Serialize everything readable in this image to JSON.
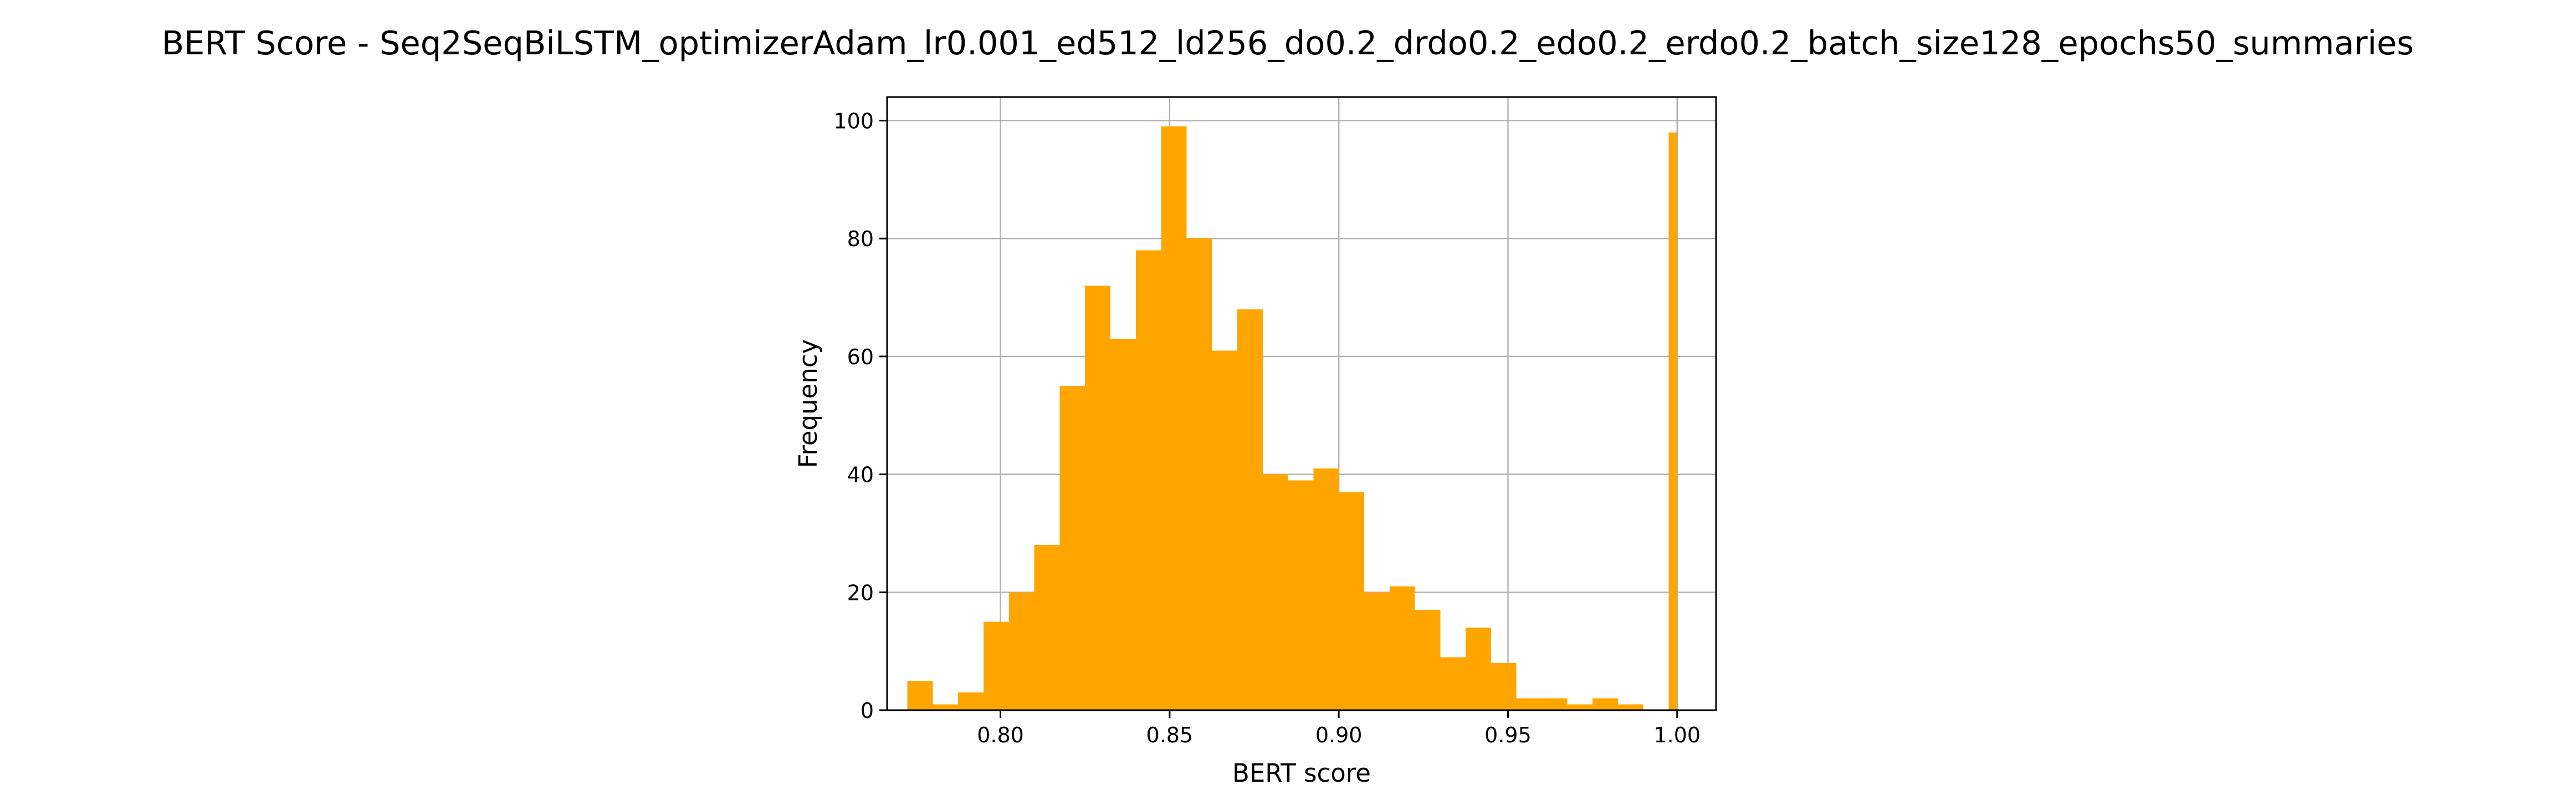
{
  "chart_data": {
    "type": "bar",
    "title": "BERT Score - Seq2SeqBiLSTM_optimizerAdam_lr0.001_ed512_ld256_do0.2_drdo0.2_edo0.2_erdo0.2_batch_size128_epochs50_summaries",
    "xlabel": "BERT score",
    "ylabel": "Frequency",
    "xlim": [
      0.7665,
      1.0115
    ],
    "ylim": [
      0,
      104
    ],
    "grid": true,
    "legend": "none",
    "bar_color": "#ffa500",
    "x_ticks": [
      {
        "value": 0.8,
        "label": "0.80"
      },
      {
        "value": 0.85,
        "label": "0.85"
      },
      {
        "value": 0.9,
        "label": "0.90"
      },
      {
        "value": 0.95,
        "label": "0.95"
      },
      {
        "value": 1.0,
        "label": "1.00"
      }
    ],
    "y_ticks": [
      {
        "value": 0,
        "label": "0"
      },
      {
        "value": 20,
        "label": "20"
      },
      {
        "value": 40,
        "label": "40"
      },
      {
        "value": 60,
        "label": "60"
      },
      {
        "value": 80,
        "label": "80"
      },
      {
        "value": 100,
        "label": "100"
      }
    ],
    "bin_edges": [
      0.7725,
      0.78,
      0.7875,
      0.795,
      0.8025,
      0.81,
      0.8175,
      0.825,
      0.8325,
      0.84,
      0.8475,
      0.855,
      0.8625,
      0.87,
      0.8775,
      0.885,
      0.8925,
      0.9,
      0.9075,
      0.915,
      0.9225,
      0.93,
      0.9375,
      0.945,
      0.9525,
      0.96,
      0.9675,
      0.975,
      0.9825,
      0.99,
      0.9975,
      1.0
    ],
    "values": [
      5,
      1,
      3,
      15,
      20,
      28,
      55,
      72,
      63,
      78,
      99,
      80,
      61,
      68,
      40,
      39,
      41,
      37,
      20,
      21,
      17,
      9,
      14,
      8,
      2,
      2,
      1,
      2,
      1,
      0,
      98
    ]
  }
}
